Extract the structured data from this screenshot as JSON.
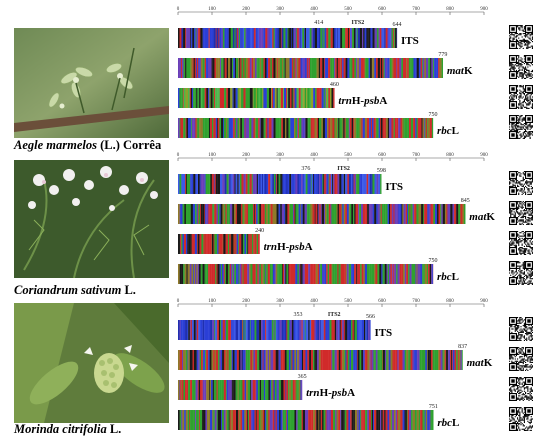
{
  "scale": {
    "ticks": [
      "0",
      "100",
      "200",
      "300",
      "400",
      "500",
      "600",
      "700",
      "800",
      "900"
    ],
    "max": 900
  },
  "panels": [
    {
      "species_italic": "Aegle marmelos",
      "species_rest": " (L.) Corrêa",
      "its2_label": "ITS2",
      "its2_start": 414,
      "its2_end": 644,
      "barcodes": [
        {
          "gene_html": "ITS",
          "gene_italic": "",
          "gene_suffix": "ITS",
          "length": 644,
          "length_label": "644",
          "palette": "blue"
        },
        {
          "gene_italic": "mat",
          "gene_suffix": "K",
          "length": 779,
          "length_label": "779",
          "palette": "mixed"
        },
        {
          "gene_italic": "trn",
          "gene_suffix": "H-",
          "gene_italic2": "psb",
          "gene_suffix2": "A",
          "length": 460,
          "length_label": "460",
          "palette": "green"
        },
        {
          "gene_italic": "rbc",
          "gene_suffix": "L",
          "length": 750,
          "length_label": "750",
          "palette": "mixed"
        }
      ]
    },
    {
      "species_italic": "Coriandrum sativum",
      "species_rest": " L.",
      "its2_label": "ITS2",
      "its2_start": 376,
      "its2_end": 598,
      "barcodes": [
        {
          "gene_italic": "",
          "gene_suffix": "ITS",
          "length": 598,
          "length_label": "598",
          "palette": "blue"
        },
        {
          "gene_italic": "mat",
          "gene_suffix": "K",
          "length": 845,
          "length_label": "845",
          "palette": "mixed"
        },
        {
          "gene_italic": "trn",
          "gene_suffix": "H-",
          "gene_italic2": "psb",
          "gene_suffix2": "A",
          "length": 240,
          "length_label": "240",
          "palette": "red"
        },
        {
          "gene_italic": "rbc",
          "gene_suffix": "L",
          "length": 750,
          "length_label": "750",
          "palette": "mixed"
        }
      ]
    },
    {
      "species_italic": "Morinda citrifolia",
      "species_rest": " L.",
      "its2_label": "ITS2",
      "its2_start": 353,
      "its2_end": 566,
      "barcodes": [
        {
          "gene_italic": "",
          "gene_suffix": "ITS",
          "length": 566,
          "length_label": "566",
          "palette": "blue"
        },
        {
          "gene_italic": "mat",
          "gene_suffix": "K",
          "length": 837,
          "length_label": "837",
          "palette": "mixed"
        },
        {
          "gene_italic": "trn",
          "gene_suffix": "H-",
          "gene_italic2": "psb",
          "gene_suffix2": "A",
          "length": 365,
          "length_label": "365",
          "palette": "mixed"
        },
        {
          "gene_italic": "rbc",
          "gene_suffix": "L",
          "length": 751,
          "length_label": "751",
          "palette": "mixed"
        }
      ]
    }
  ],
  "colors": {
    "A": "#2fa12f",
    "C": "#2b3fd6",
    "G": "#1a1a1a",
    "T": "#d02a2a"
  }
}
